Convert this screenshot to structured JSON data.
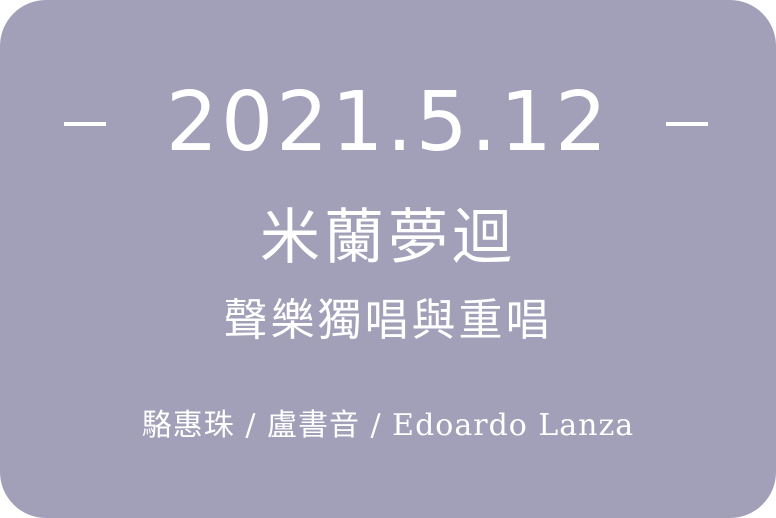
{
  "event": {
    "date": "2021.5.12",
    "dash_left": "–",
    "dash_right": "–",
    "title": "米蘭夢迴",
    "subtitle": "聲樂獨唱與重唱",
    "performers": "駱惠珠 / 盧書音 / Edoardo Lanza"
  },
  "colors": {
    "card_background": "#a29fb9",
    "text": "#ffffff"
  }
}
